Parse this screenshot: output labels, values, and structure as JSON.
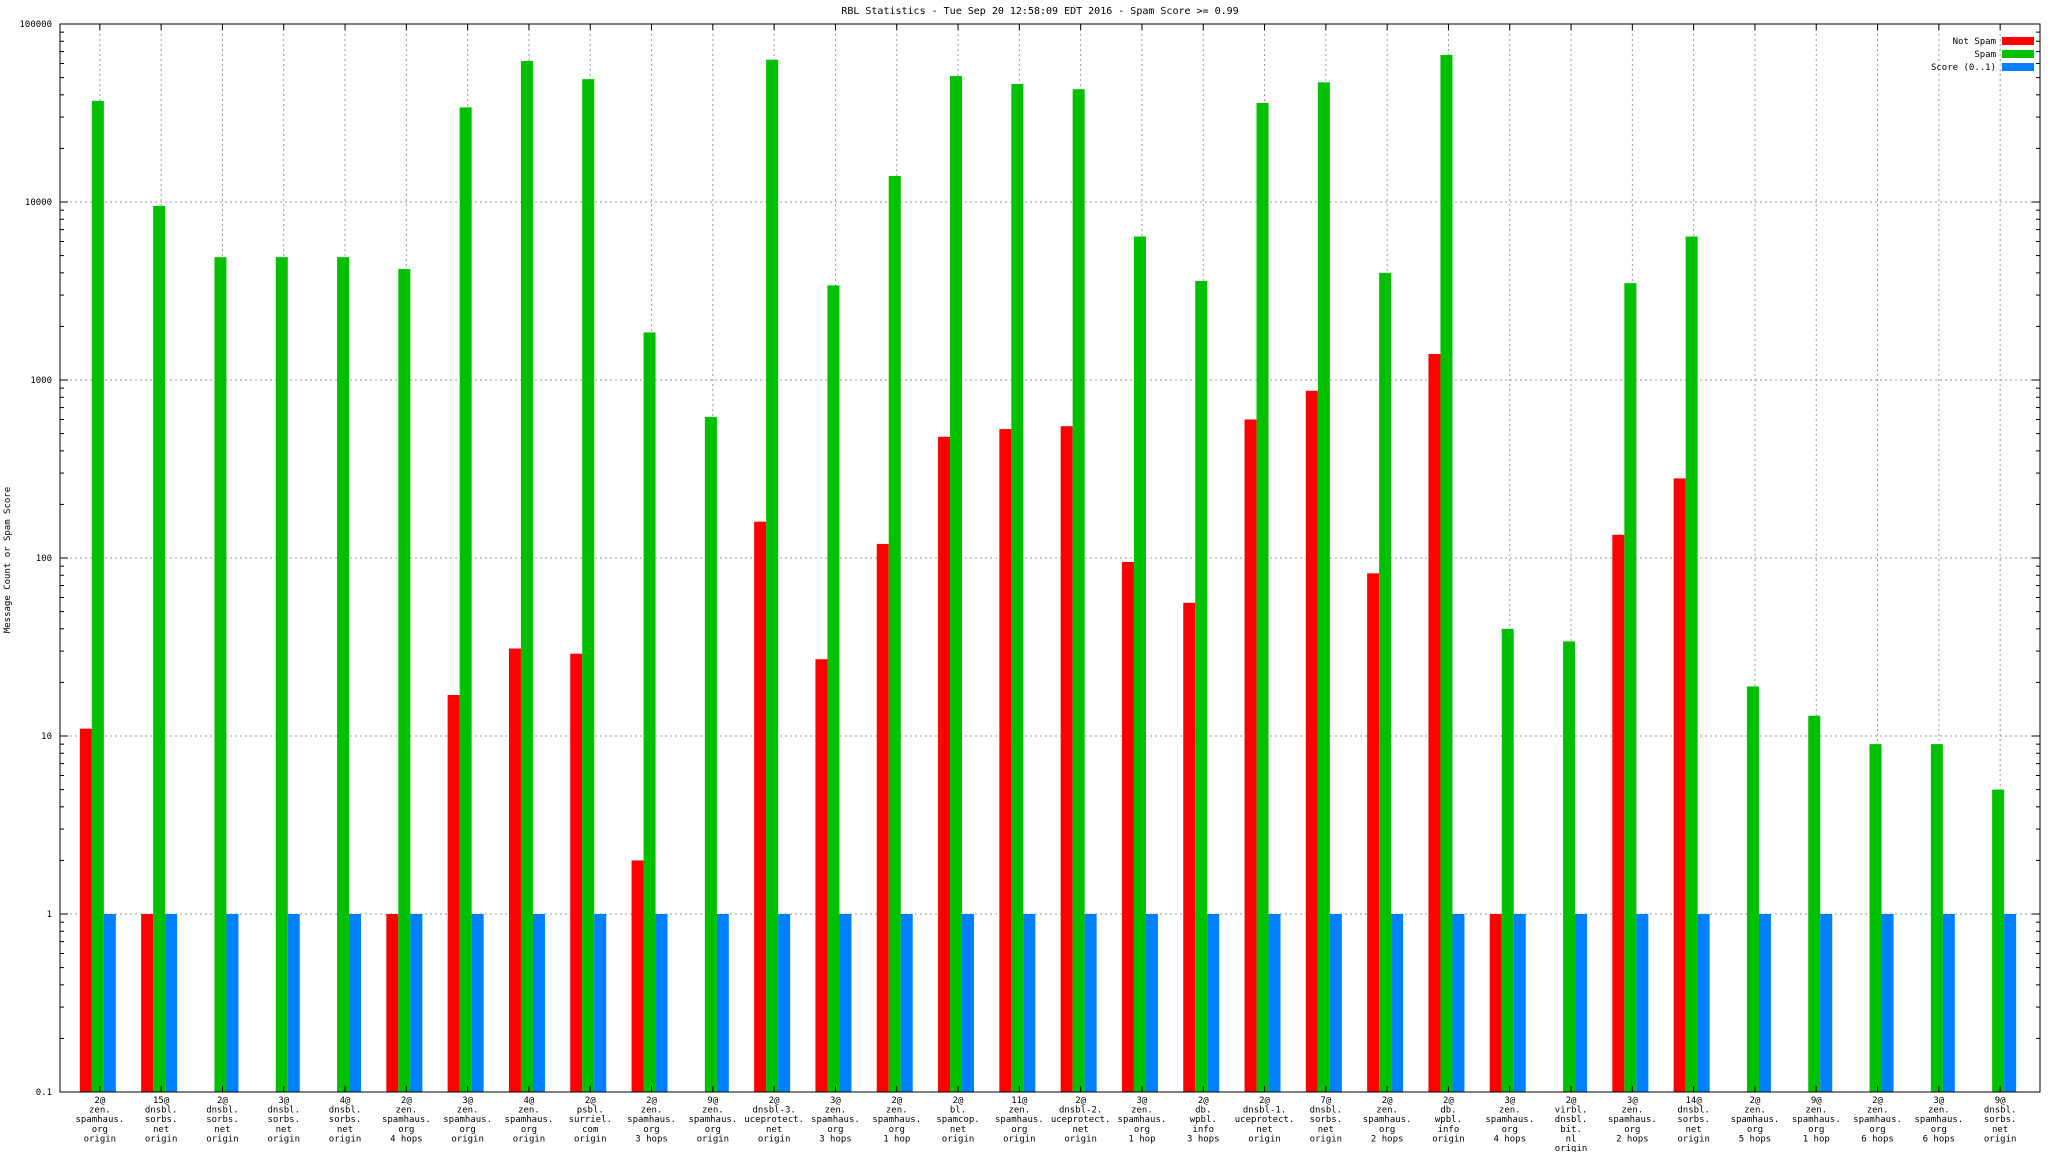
{
  "chart_data": {
    "type": "bar",
    "title": "RBL Statistics - Tue Sep 20 12:58:09 EDT 2016 - Spam Score >= 0.99",
    "xlabel": "",
    "ylabel": "Message Count or Spam Score",
    "yscale": "log",
    "ylim": [
      0.1,
      100000
    ],
    "yticks": [
      {
        "value": 0.1,
        "label": "0.1"
      },
      {
        "value": 1,
        "label": "1"
      },
      {
        "value": 10,
        "label": "10"
      },
      {
        "value": 100,
        "label": "100"
      },
      {
        "value": 1000,
        "label": "1000"
      },
      {
        "value": 10000,
        "label": "10000"
      },
      {
        "value": 100000,
        "label": "100000"
      }
    ],
    "grid": true,
    "legend_position": "top-right",
    "categories": [
      [
        "2@",
        "zen.",
        "spamhaus.",
        "org",
        "origin"
      ],
      [
        "15@",
        "dnsbl.",
        "sorbs.",
        "net",
        "origin"
      ],
      [
        "2@",
        "dnsbl.",
        "sorbs.",
        "net",
        "origin"
      ],
      [
        "3@",
        "dnsbl.",
        "sorbs.",
        "net",
        "origin"
      ],
      [
        "4@",
        "dnsbl.",
        "sorbs.",
        "net",
        "origin"
      ],
      [
        "2@",
        "zen.",
        "spamhaus.",
        "org",
        "4 hops"
      ],
      [
        "3@",
        "zen.",
        "spamhaus.",
        "org",
        "origin"
      ],
      [
        "4@",
        "zen.",
        "spamhaus.",
        "org",
        "origin"
      ],
      [
        "2@",
        "psbl.",
        "surriel.",
        "com",
        "origin"
      ],
      [
        "2@",
        "zen.",
        "spamhaus.",
        "org",
        "3 hops"
      ],
      [
        "9@",
        "zen.",
        "spamhaus.",
        "org",
        "origin"
      ],
      [
        "2@",
        "dnsbl-3.",
        "uceprotect.",
        "net",
        "origin"
      ],
      [
        "3@",
        "zen.",
        "spamhaus.",
        "org",
        "3 hops"
      ],
      [
        "2@",
        "zen.",
        "spamhaus.",
        "org",
        "1 hop"
      ],
      [
        "2@",
        "bl.",
        "spamcop.",
        "net",
        "origin"
      ],
      [
        "11@",
        "zen.",
        "spamhaus.",
        "org",
        "origin"
      ],
      [
        "2@",
        "dnsbl-2.",
        "uceprotect.",
        "net",
        "origin"
      ],
      [
        "3@",
        "zen.",
        "spamhaus.",
        "org",
        "1 hop"
      ],
      [
        "2@",
        "db.",
        "wpbl.",
        "info",
        "3 hops"
      ],
      [
        "2@",
        "dnsbl-1.",
        "uceprotect.",
        "net",
        "origin"
      ],
      [
        "7@",
        "dnsbl.",
        "sorbs.",
        "net",
        "origin"
      ],
      [
        "2@",
        "zen.",
        "spamhaus.",
        "org",
        "2 hops"
      ],
      [
        "2@",
        "db.",
        "wpbl.",
        "info",
        "origin"
      ],
      [
        "3@",
        "zen.",
        "spamhaus.",
        "org",
        "4 hops"
      ],
      [
        "2@",
        "virbl.",
        "dnsbl.",
        "bit.",
        "nl",
        "origin"
      ],
      [
        "3@",
        "zen.",
        "spamhaus.",
        "org",
        "2 hops"
      ],
      [
        "14@",
        "dnsbl.",
        "sorbs.",
        "net",
        "origin"
      ],
      [
        "2@",
        "zen.",
        "spamhaus.",
        "org",
        "5 hops"
      ],
      [
        "9@",
        "zen.",
        "spamhaus.",
        "org",
        "1 hop"
      ],
      [
        "2@",
        "zen.",
        "spamhaus.",
        "org",
        "6 hops"
      ],
      [
        "3@",
        "zen.",
        "spamhaus.",
        "org",
        "6 hops"
      ],
      [
        "9@",
        "dnsbl.",
        "sorbs.",
        "net",
        "origin"
      ]
    ],
    "series": [
      {
        "name": "Not Spam",
        "color": "#ff0000",
        "values": [
          11,
          1,
          null,
          null,
          null,
          1,
          17,
          31,
          29,
          2,
          null,
          160,
          27,
          120,
          480,
          530,
          550,
          95,
          56,
          600,
          870,
          82,
          1400,
          1,
          null,
          135,
          280,
          null,
          null,
          null,
          null,
          null
        ]
      },
      {
        "name": "Spam",
        "color": "#00c000",
        "values": [
          37000,
          9500,
          4900,
          4900,
          4900,
          4200,
          34000,
          62000,
          49000,
          1850,
          620,
          63000,
          3400,
          14000,
          51000,
          46000,
          43000,
          6400,
          3600,
          36000,
          47000,
          4000,
          67000,
          40,
          34,
          3500,
          6400,
          19,
          13,
          9,
          9,
          5
        ]
      },
      {
        "name": "Score (0..1)",
        "color": "#0080ff",
        "values": [
          1,
          1,
          1,
          1,
          1,
          1,
          1,
          1,
          1,
          1,
          1,
          1,
          1,
          1,
          1,
          1,
          1,
          1,
          1,
          1,
          1,
          1,
          1,
          1,
          1,
          1,
          1,
          1,
          1,
          1,
          1,
          1
        ]
      }
    ]
  }
}
